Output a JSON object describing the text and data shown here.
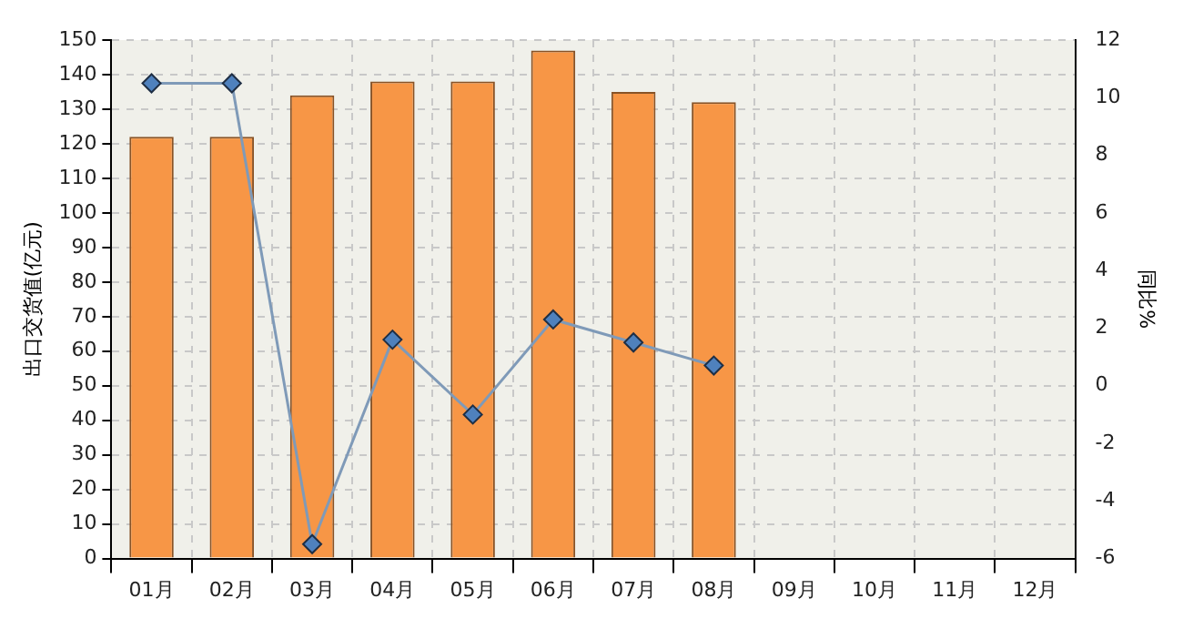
{
  "chart_data": {
    "type": "bar",
    "categories": [
      "01月",
      "02月",
      "03月",
      "04月",
      "05月",
      "06月",
      "07月",
      "08月",
      "09月",
      "10月",
      "11月",
      "12月"
    ],
    "series": [
      {
        "type": "bar",
        "color": "#f79646",
        "values": [
          122,
          122,
          134,
          138,
          138,
          147,
          135,
          132,
          null,
          null,
          null,
          null
        ]
      },
      {
        "type": "line",
        "axis": "y2",
        "color": "#7f9ab8",
        "marker": "diamond",
        "values": [
          10.5,
          10.5,
          -5.5,
          1.6,
          -1.0,
          2.3,
          1.5,
          0.7,
          null,
          null,
          null,
          null
        ]
      }
    ],
    "ylabel": "出口交货值(亿元)",
    "y2label": "同比%",
    "ylim": [
      0,
      150
    ],
    "yticks": [
      0,
      10,
      20,
      30,
      40,
      50,
      60,
      70,
      80,
      90,
      100,
      110,
      120,
      130,
      140,
      150
    ],
    "y2lim": [
      -6,
      12
    ],
    "y2ticks": [
      -6,
      -4,
      -2,
      0,
      2,
      4,
      6,
      8,
      10,
      12
    ],
    "grid": true,
    "legend": false
  }
}
